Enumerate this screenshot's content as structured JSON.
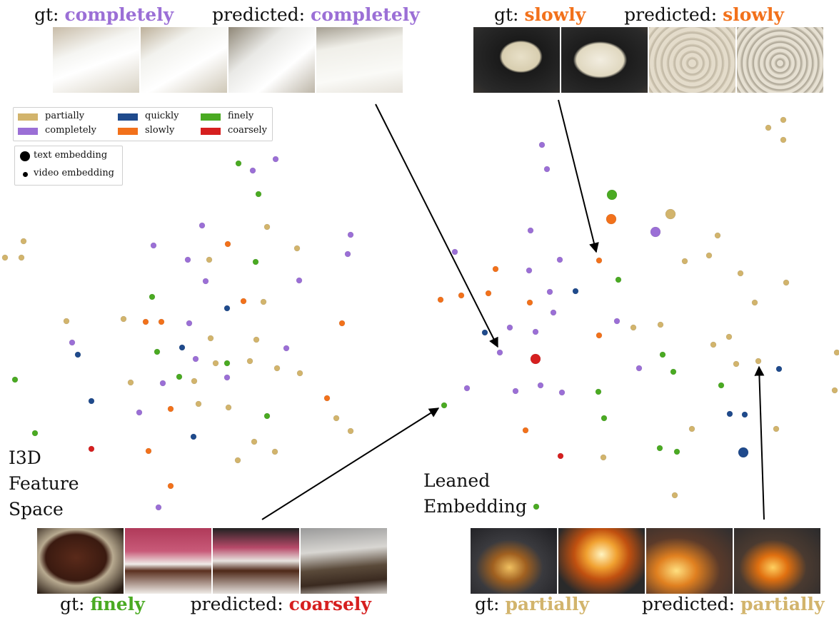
{
  "colors": {
    "partially": "#d2b46c",
    "completely": "#9b6fd6",
    "quickly": "#1f4a8c",
    "finely": "#4aaa22",
    "slowly": "#f2711b",
    "coarsely": "#d61f1f"
  },
  "legend": {
    "classes": [
      {
        "label": "partially",
        "key": "partially"
      },
      {
        "label": "completely",
        "key": "completely"
      },
      {
        "label": "quickly",
        "key": "quickly"
      },
      {
        "label": "slowly",
        "key": "slowly"
      },
      {
        "label": "finely",
        "key": "finely"
      },
      {
        "label": "coarsely",
        "key": "coarsely"
      }
    ],
    "sizes": [
      {
        "label": "text embedding"
      },
      {
        "label": "video embedding"
      }
    ]
  },
  "examples": [
    {
      "gt_prefix": "gt:",
      "gt": "completely",
      "gt_key": "completely",
      "pred_prefix": "predicted:",
      "pred": "completely",
      "pred_key": "completely"
    },
    {
      "gt_prefix": "gt:",
      "gt": "slowly",
      "gt_key": "slowly",
      "pred_prefix": "predicted:",
      "pred": "slowly",
      "pred_key": "slowly"
    },
    {
      "gt_prefix": "gt:",
      "gt": "finely",
      "gt_key": "finely",
      "pred_prefix": "predicted:",
      "pred": "coarsely",
      "pred_key": "coarsely"
    },
    {
      "gt_prefix": "gt:",
      "gt": "partially",
      "gt_key": "partially",
      "pred_prefix": "predicted:",
      "pred": "partially",
      "pred_key": "partially"
    }
  ],
  "spaces": {
    "left": [
      "I3D",
      "Feature",
      "Space"
    ],
    "right": [
      "Leaned",
      "Embedding"
    ]
  }
}
